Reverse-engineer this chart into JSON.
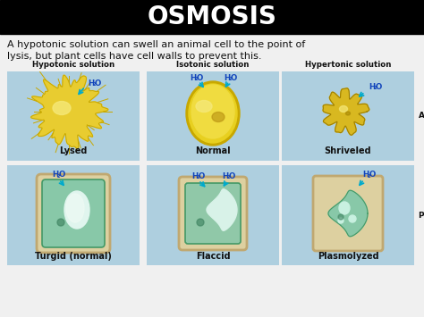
{
  "title": "OSMOSIS",
  "title_bg": "#000000",
  "title_color": "#ffffff",
  "subtitle_line1": "A hypotonic solution can swell an animal cell to the point of",
  "subtitle_line2": "lysis, but plant cells have cell walls to prevent this.",
  "subtitle_color": "#111111",
  "bg_color": "#f0f0f0",
  "panel_bg": "#aecfdf",
  "col_labels": [
    "Hypotonic solution",
    "Isotonic solution",
    "Hypertonic solution"
  ],
  "row_label_animal": "Animal cell",
  "row_label_plant": "Plant cell",
  "animal_labels": [
    "Lysed",
    "Normal",
    "Shriveled"
  ],
  "plant_labels": [
    "Turgid (normal)",
    "Flaccid",
    "Plasmolyzed"
  ],
  "h2o_color": "#1144bb",
  "arrow_color": "#00aacc",
  "cell_yellow": "#e8cc30",
  "cell_yellow_light": "#f5e878",
  "cell_yellow_dark": "#c8a800",
  "plant_green": "#88c8a8",
  "plant_wall": "#d8c898",
  "plant_vacuole": "#d8f0e8"
}
